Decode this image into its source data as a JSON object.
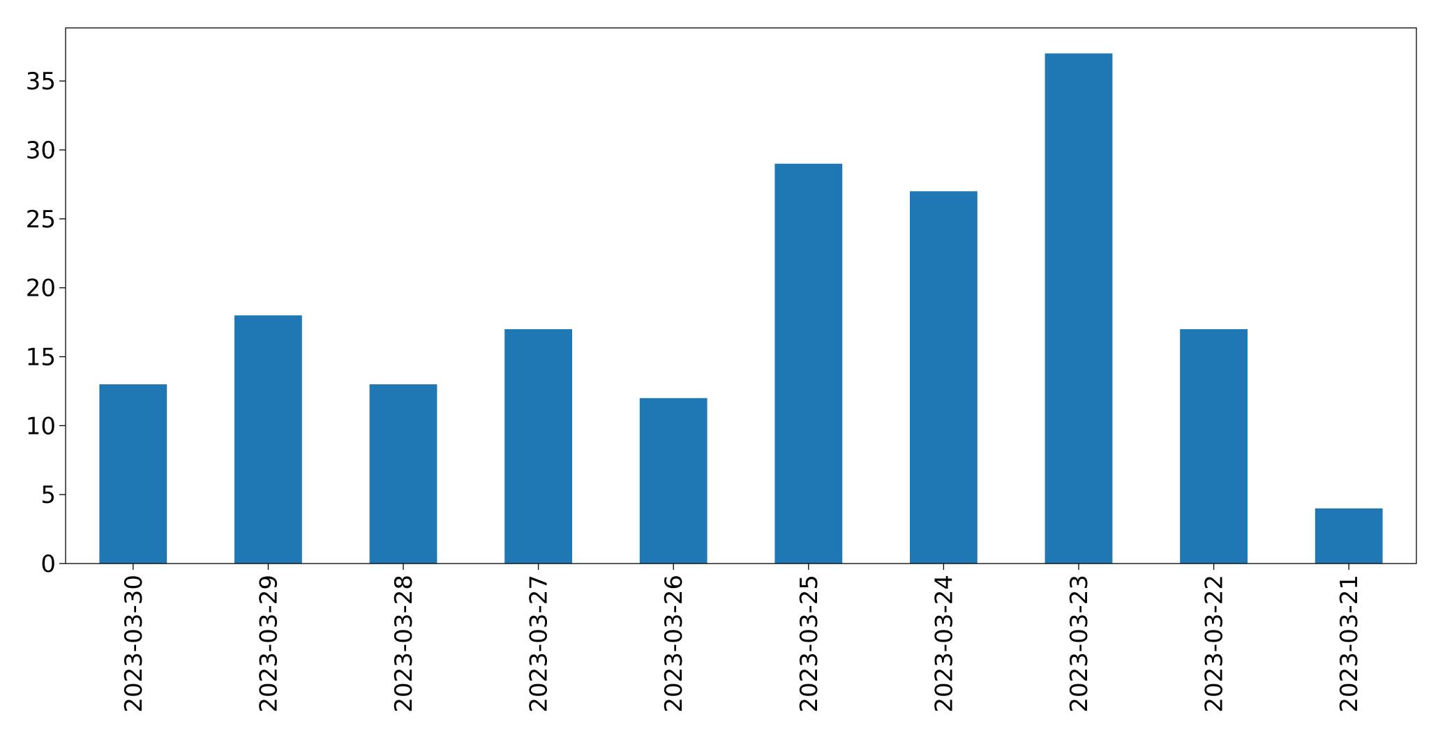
{
  "chart_data": {
    "type": "bar",
    "categories": [
      "2023-03-30",
      "2023-03-29",
      "2023-03-28",
      "2023-03-27",
      "2023-03-26",
      "2023-03-25",
      "2023-03-24",
      "2023-03-23",
      "2023-03-22",
      "2023-03-21"
    ],
    "values": [
      13,
      18,
      13,
      17,
      12,
      29,
      27,
      37,
      17,
      4
    ],
    "color": "#1f77b4",
    "ylim": [
      0,
      38.85
    ],
    "yticks": [
      0,
      5,
      10,
      15,
      20,
      25,
      30,
      35
    ],
    "grid": false
  }
}
